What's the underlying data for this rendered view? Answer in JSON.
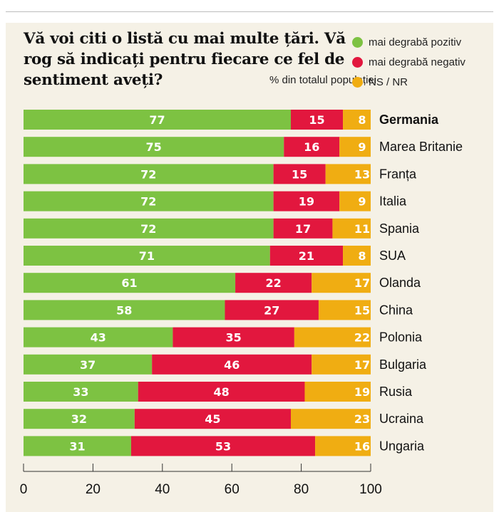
{
  "chart_data": {
    "type": "bar",
    "orientation": "horizontal",
    "stacked": true,
    "title": "Vă voi citi o listă cu mai multe țări. Vă rog să indicați pentru fiecare ce fel de sentiment aveți?",
    "unit_label": "% din totalul populației",
    "categories": [
      "Germania",
      "Marea Britanie",
      "Franța",
      "Italia",
      "Spania",
      "SUA",
      "Olanda",
      "China",
      "Polonia",
      "Bulgaria",
      "Rusia",
      "Ucraina",
      "Ungaria"
    ],
    "highlighted_category": "Germania",
    "series": [
      {
        "name": "mai degrabă pozitiv",
        "color": "#7dc242",
        "values": [
          77,
          75,
          72,
          72,
          72,
          71,
          61,
          58,
          43,
          37,
          33,
          32,
          31
        ]
      },
      {
        "name": "mai degrabă negativ",
        "color": "#e2173e",
        "values": [
          15,
          16,
          15,
          19,
          17,
          21,
          22,
          27,
          35,
          46,
          48,
          45,
          53
        ]
      },
      {
        "name": "NS / NR",
        "color": "#f0ad12",
        "values": [
          8,
          9,
          13,
          9,
          11,
          8,
          17,
          15,
          22,
          17,
          19,
          23,
          16
        ]
      }
    ],
    "xlim": [
      0,
      100
    ],
    "xticks": [
      0,
      20,
      40,
      60,
      80,
      100
    ],
    "grid": false,
    "legend_position": "top-right"
  }
}
